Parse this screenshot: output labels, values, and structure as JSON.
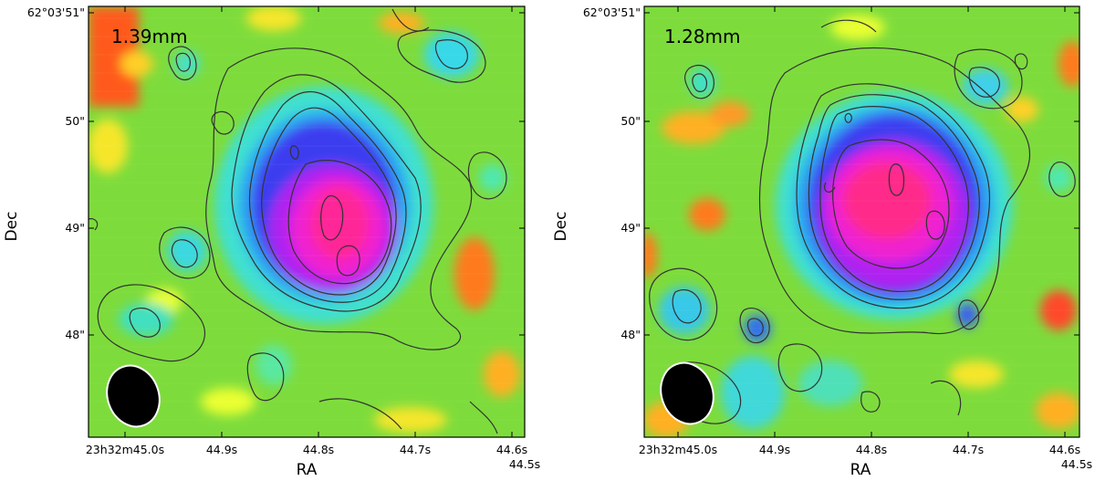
{
  "chart_data": [
    {
      "type": "heatmap",
      "band_label": "1.39mm",
      "xlabel": "RA",
      "ylabel": "Dec",
      "x_ticks": [
        "23h32m45.0s",
        "44.9s",
        "44.8s",
        "44.7s",
        "44.6s",
        "44.5s"
      ],
      "y_ticks": [
        "62°03'51\"",
        "50\"",
        "49\"",
        "48\""
      ],
      "beam": "filled black ellipse, lower-left",
      "colormap": "gist_rainbow_r",
      "contours": true
    },
    {
      "type": "heatmap",
      "band_label": "1.28mm",
      "xlabel": "RA",
      "ylabel": "Dec",
      "x_ticks": [
        "23h32m45.0s",
        "44.9s",
        "44.8s",
        "44.7s",
        "44.6s",
        "44.5s"
      ],
      "y_ticks": [
        "62°03'51\"",
        "50\"",
        "49\"",
        "48\""
      ],
      "beam": "filled black ellipse, lower-left",
      "colormap": "gist_rainbow_r",
      "contours": true
    }
  ]
}
